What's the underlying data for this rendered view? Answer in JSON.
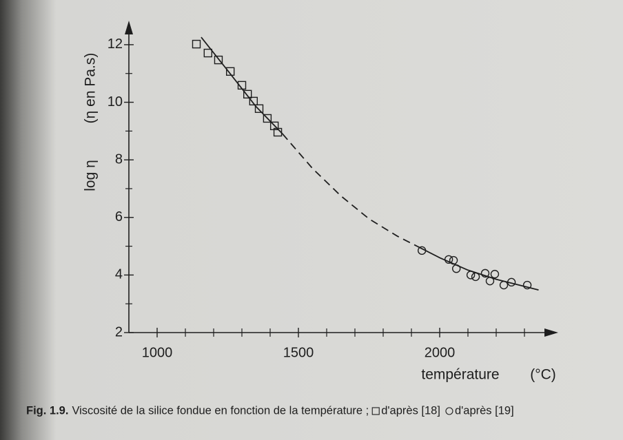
{
  "chart_data": {
    "type": "scatter",
    "xlabel": "température",
    "xunit": "(°C)",
    "ylabel": "log η",
    "yunit": "(η en Pa.s)",
    "caption_label": "Fig. 1.9.",
    "caption": "Viscosité de la silice fondue en fonction de la température ;",
    "xlim": [
      900,
      2400
    ],
    "ylim": [
      2,
      12.5
    ],
    "xticks": [
      1000,
      1500,
      2000
    ],
    "xminorticks": [
      1100,
      1200,
      1300,
      1400,
      1600,
      1700,
      1800,
      1900,
      2100,
      2200,
      2300
    ],
    "yticks": [
      2,
      4,
      6,
      8,
      10,
      12
    ],
    "yminorticks": [
      3,
      5,
      7,
      9,
      11
    ],
    "color": "#1e1e1e",
    "series": [
      {
        "name": "d'après [18]",
        "marker": "square",
        "x": [
          1139,
          1180,
          1217,
          1259,
          1300,
          1320,
          1341,
          1361,
          1390,
          1415,
          1427
        ],
        "values": [
          12.02,
          11.71,
          11.47,
          11.07,
          10.59,
          10.28,
          10.04,
          9.78,
          9.44,
          9.18,
          8.96
        ]
      },
      {
        "name": "d'après [19]",
        "marker": "circle",
        "x": [
          1937,
          2032,
          2049,
          2059,
          2110,
          2127,
          2161,
          2178,
          2195,
          2227,
          2254,
          2310
        ],
        "values": [
          4.85,
          4.54,
          4.51,
          4.22,
          4.0,
          3.94,
          4.06,
          3.79,
          4.03,
          3.65,
          3.75,
          3.65
        ]
      }
    ],
    "curves": [
      {
        "dashed": false,
        "x": [
          1156,
          1250,
          1350,
          1444
        ],
        "values": [
          12.26,
          11.1,
          9.85,
          8.9
        ]
      },
      {
        "dashed": true,
        "x": [
          1444,
          1550,
          1650,
          1750,
          1850,
          1920
        ],
        "values": [
          8.9,
          7.7,
          6.75,
          5.95,
          5.35,
          5.0
        ]
      },
      {
        "dashed": false,
        "x": [
          1920,
          2000,
          2100,
          2200,
          2350
        ],
        "values": [
          5.0,
          4.6,
          4.17,
          3.85,
          3.48
        ]
      }
    ]
  }
}
